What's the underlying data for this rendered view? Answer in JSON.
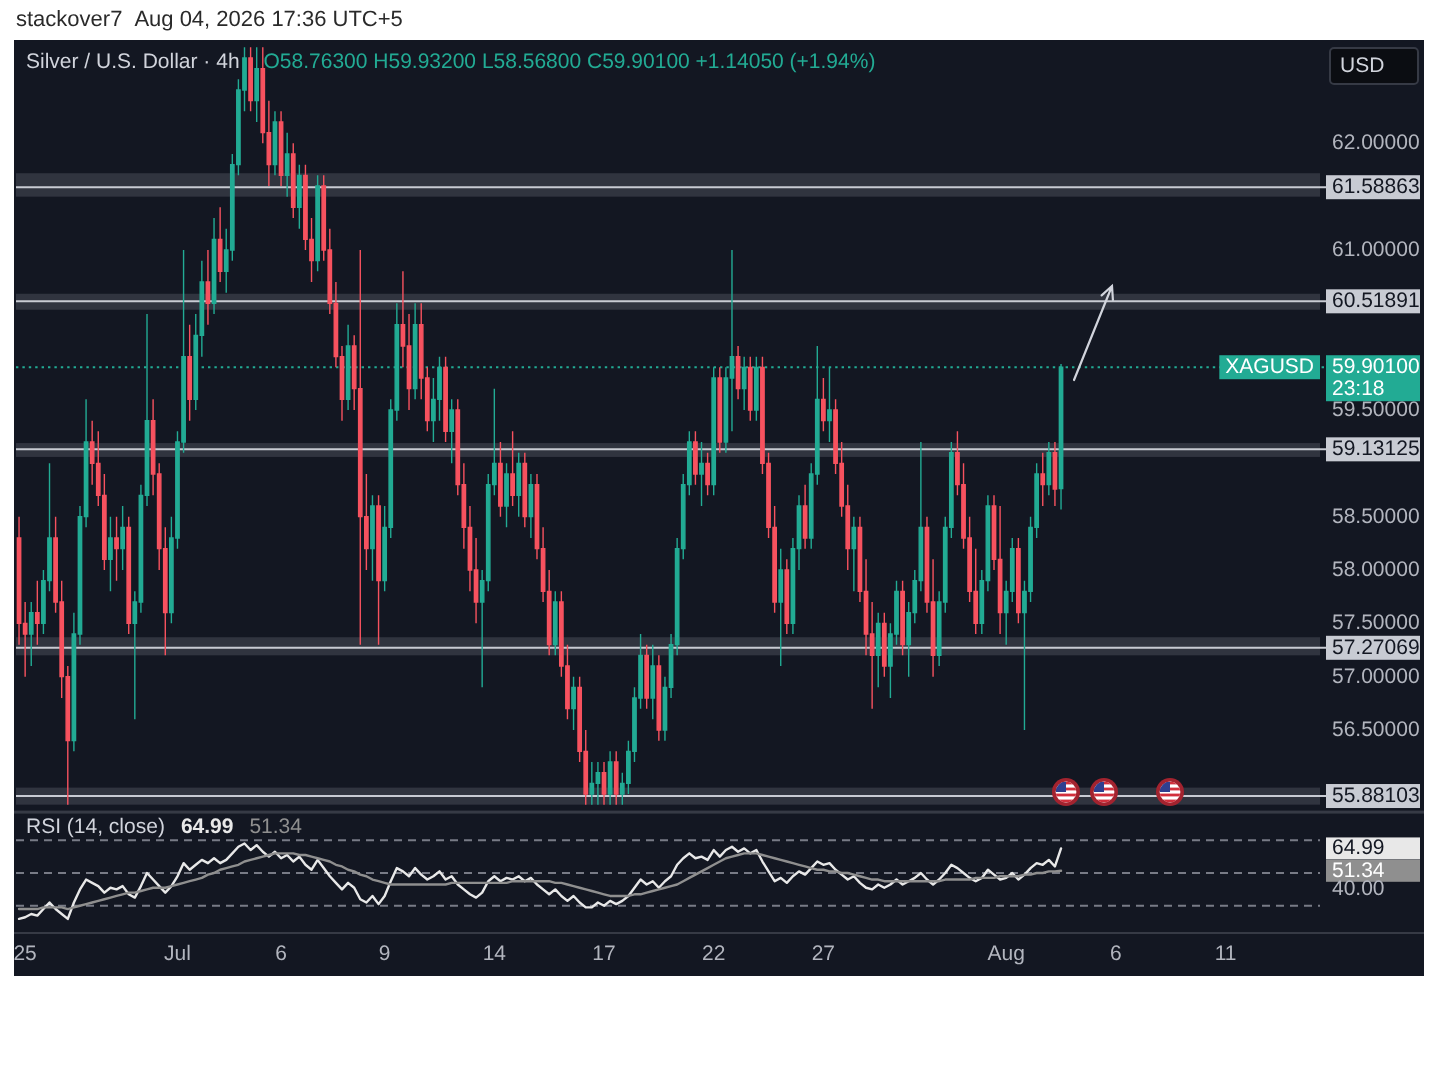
{
  "chart_data": [
    {
      "type": "candlestick",
      "title": "Silver / U.S. Dollar · 4h",
      "subtitle": "O58.76300 H59.93200 L58.56800 C59.90100 +1.14050 (+1.94%)",
      "ylabel": "USD",
      "annotations": [
        "stackover7",
        "Aug 04, 2026 17:36 UTC+5",
        {
          "text": "XAGUSD",
          "y": 59.901
        },
        "23:18"
      ],
      "categories": [
        null,
        null,
        null,
        null,
        null,
        null,
        null,
        null,
        null,
        null,
        null,
        null,
        null,
        null,
        null,
        null,
        null,
        null,
        null,
        null,
        null,
        null,
        null,
        null,
        null,
        null,
        null,
        null,
        null,
        null,
        null,
        null,
        null,
        null,
        null,
        null,
        null,
        null,
        null,
        null,
        null,
        null,
        null,
        null,
        null,
        null,
        null,
        null,
        null,
        null,
        null,
        null,
        null,
        null,
        null,
        null,
        null,
        null,
        null,
        null,
        null,
        null,
        null,
        null,
        null,
        null,
        null,
        null,
        null,
        null,
        null,
        null,
        null,
        null,
        null,
        null,
        null,
        null,
        null,
        null,
        null,
        null,
        null,
        null,
        null,
        null,
        null,
        null,
        null,
        null,
        null,
        null,
        null,
        null,
        null,
        null,
        null,
        null,
        null,
        null,
        null,
        null,
        null,
        null,
        null,
        null,
        null,
        null,
        null,
        null,
        null,
        null,
        null,
        null,
        null,
        null,
        null,
        null,
        null,
        null,
        null,
        null,
        null,
        null,
        null,
        null,
        null,
        null,
        null,
        null,
        null,
        null,
        null,
        null,
        null,
        null,
        null,
        null,
        null,
        null,
        null,
        null,
        null,
        null,
        null,
        null,
        null,
        null,
        null,
        null,
        null,
        null,
        null,
        null,
        null,
        null,
        null,
        null,
        null,
        null,
        null,
        null,
        null,
        null,
        null,
        null,
        null,
        null,
        null,
        null,
        null,
        null,
        null,
        null,
        null,
        null,
        null,
        null,
        null,
        null,
        null,
        null,
        null,
        null,
        null,
        null,
        null,
        null,
        null,
        null,
        null,
        null,
        null,
        null,
        null,
        null,
        null,
        null,
        null,
        null,
        null,
        null,
        null,
        null,
        null,
        null,
        null,
        null,
        null,
        null,
        null,
        null,
        null,
        null
      ],
      "ohlc": [
        [
          58.3,
          58.5,
          57.3,
          57.5
        ],
        [
          57.5,
          57.7,
          57.0,
          57.4
        ],
        [
          57.4,
          57.7,
          57.1,
          57.6
        ],
        [
          57.6,
          57.9,
          57.3,
          57.5
        ],
        [
          57.5,
          58.0,
          57.4,
          57.9
        ],
        [
          57.9,
          59.0,
          57.8,
          58.3
        ],
        [
          58.3,
          58.5,
          57.6,
          57.7
        ],
        [
          57.7,
          57.9,
          56.8,
          57.0
        ],
        [
          57.0,
          57.1,
          55.8,
          56.4
        ],
        [
          56.4,
          57.6,
          56.3,
          57.4
        ],
        [
          57.4,
          58.6,
          57.3,
          58.5
        ],
        [
          58.5,
          59.6,
          58.4,
          59.2
        ],
        [
          59.2,
          59.4,
          58.8,
          59.0
        ],
        [
          59.0,
          59.3,
          58.6,
          58.7
        ],
        [
          58.7,
          58.9,
          58.0,
          58.1
        ],
        [
          58.1,
          58.5,
          57.8,
          58.3
        ],
        [
          58.3,
          58.5,
          57.9,
          58.2
        ],
        [
          58.2,
          58.6,
          58.0,
          58.4
        ],
        [
          58.4,
          58.5,
          57.4,
          57.5
        ],
        [
          57.5,
          57.8,
          56.6,
          57.7
        ],
        [
          57.7,
          58.8,
          57.6,
          58.7
        ],
        [
          58.7,
          60.4,
          58.6,
          59.4
        ],
        [
          59.4,
          59.6,
          58.7,
          58.9
        ],
        [
          58.9,
          59.0,
          58.0,
          58.2
        ],
        [
          58.2,
          58.4,
          57.2,
          57.6
        ],
        [
          57.6,
          58.5,
          57.5,
          58.3
        ],
        [
          58.3,
          59.3,
          58.2,
          59.2
        ],
        [
          59.2,
          61.0,
          59.1,
          60.0
        ],
        [
          60.0,
          60.3,
          59.4,
          59.6
        ],
        [
          59.6,
          60.4,
          59.5,
          60.2
        ],
        [
          60.2,
          60.9,
          60.0,
          60.7
        ],
        [
          60.7,
          61.0,
          60.3,
          60.5
        ],
        [
          60.5,
          61.3,
          60.4,
          61.1
        ],
        [
          61.1,
          61.4,
          60.7,
          60.8
        ],
        [
          60.8,
          61.2,
          60.6,
          61.0
        ],
        [
          61.0,
          61.9,
          60.9,
          61.8
        ],
        [
          61.8,
          62.6,
          61.7,
          62.5
        ],
        [
          62.5,
          62.9,
          62.3,
          62.8
        ],
        [
          62.8,
          62.9,
          62.3,
          62.4
        ],
        [
          62.4,
          62.9,
          62.2,
          62.7
        ],
        [
          62.7,
          62.9,
          62.0,
          62.1
        ],
        [
          62.1,
          62.4,
          61.6,
          61.8
        ],
        [
          61.8,
          62.3,
          61.7,
          62.2
        ],
        [
          62.2,
          62.3,
          61.6,
          61.7
        ],
        [
          61.7,
          62.1,
          61.5,
          61.9
        ],
        [
          61.9,
          62.0,
          61.3,
          61.4
        ],
        [
          61.4,
          61.8,
          61.2,
          61.7
        ],
        [
          61.7,
          61.8,
          61.0,
          61.1
        ],
        [
          61.1,
          61.3,
          60.7,
          60.9
        ],
        [
          60.9,
          61.7,
          60.8,
          61.6
        ],
        [
          61.6,
          61.7,
          60.9,
          61.0
        ],
        [
          61.0,
          61.2,
          60.4,
          60.5
        ],
        [
          60.5,
          60.7,
          59.9,
          60.0
        ],
        [
          60.0,
          60.1,
          59.4,
          59.6
        ],
        [
          59.6,
          60.3,
          59.5,
          60.1
        ],
        [
          60.1,
          60.2,
          59.5,
          59.7
        ],
        [
          59.7,
          61.0,
          57.3,
          58.5
        ],
        [
          58.5,
          58.9,
          58.0,
          58.2
        ],
        [
          58.2,
          58.7,
          57.9,
          58.6
        ],
        [
          58.6,
          58.7,
          57.3,
          57.9
        ],
        [
          57.9,
          58.6,
          57.8,
          58.4
        ],
        [
          58.4,
          59.6,
          58.3,
          59.5
        ],
        [
          59.5,
          60.5,
          59.4,
          60.3
        ],
        [
          60.3,
          60.8,
          59.9,
          60.1
        ],
        [
          60.1,
          60.4,
          59.5,
          59.7
        ],
        [
          59.7,
          60.5,
          59.6,
          60.3
        ],
        [
          60.3,
          60.5,
          59.6,
          59.8
        ],
        [
          59.8,
          59.9,
          59.3,
          59.4
        ],
        [
          59.4,
          59.8,
          59.2,
          59.6
        ],
        [
          59.6,
          60.0,
          59.4,
          59.9
        ],
        [
          59.9,
          60.0,
          59.2,
          59.3
        ],
        [
          59.3,
          59.6,
          59.0,
          59.5
        ],
        [
          59.5,
          59.6,
          58.7,
          58.8
        ],
        [
          58.8,
          59.0,
          58.2,
          58.4
        ],
        [
          58.4,
          58.6,
          57.8,
          58.0
        ],
        [
          58.0,
          58.3,
          57.5,
          57.7
        ],
        [
          57.7,
          58.0,
          56.9,
          57.9
        ],
        [
          57.9,
          58.9,
          57.8,
          58.8
        ],
        [
          58.8,
          59.7,
          58.7,
          59.0
        ],
        [
          59.0,
          59.2,
          58.5,
          58.6
        ],
        [
          58.6,
          59.0,
          58.4,
          58.9
        ],
        [
          58.9,
          59.3,
          58.6,
          58.7
        ],
        [
          58.7,
          59.1,
          58.5,
          59.0
        ],
        [
          59.0,
          59.1,
          58.4,
          58.5
        ],
        [
          58.5,
          58.9,
          58.3,
          58.8
        ],
        [
          58.8,
          58.9,
          58.1,
          58.2
        ],
        [
          58.2,
          58.4,
          57.7,
          57.8
        ],
        [
          57.8,
          58.0,
          57.2,
          57.3
        ],
        [
          57.3,
          57.8,
          57.2,
          57.7
        ],
        [
          57.7,
          57.8,
          57.0,
          57.1
        ],
        [
          57.1,
          57.3,
          56.6,
          56.7
        ],
        [
          56.7,
          57.0,
          56.5,
          56.9
        ],
        [
          56.9,
          57.0,
          56.2,
          56.3
        ],
        [
          56.3,
          56.5,
          55.8,
          55.9
        ],
        [
          55.9,
          56.2,
          55.8,
          56.0
        ],
        [
          56.0,
          56.2,
          55.8,
          56.1
        ],
        [
          56.1,
          56.2,
          55.8,
          55.9
        ],
        [
          55.9,
          56.3,
          55.8,
          56.2
        ],
        [
          56.2,
          56.3,
          55.8,
          55.9
        ],
        [
          55.9,
          56.1,
          55.8,
          56.0
        ],
        [
          56.0,
          56.4,
          55.9,
          56.3
        ],
        [
          56.3,
          56.9,
          56.2,
          56.8
        ],
        [
          56.8,
          57.4,
          56.7,
          57.2
        ],
        [
          57.2,
          57.3,
          56.7,
          56.8
        ],
        [
          56.8,
          57.3,
          56.6,
          57.1
        ],
        [
          57.1,
          57.2,
          56.4,
          56.5
        ],
        [
          56.5,
          57.0,
          56.4,
          56.9
        ],
        [
          56.9,
          57.4,
          56.8,
          57.3
        ],
        [
          57.3,
          58.3,
          57.2,
          58.2
        ],
        [
          58.2,
          58.9,
          58.1,
          58.8
        ],
        [
          58.8,
          59.3,
          58.7,
          59.2
        ],
        [
          59.2,
          59.3,
          58.8,
          58.9
        ],
        [
          58.9,
          59.2,
          58.6,
          59.0
        ],
        [
          59.0,
          59.1,
          58.7,
          58.8
        ],
        [
          58.8,
          59.9,
          58.7,
          59.8
        ],
        [
          59.8,
          59.9,
          59.1,
          59.2
        ],
        [
          59.2,
          59.9,
          59.1,
          59.8
        ],
        [
          59.8,
          61.0,
          59.3,
          60.0
        ],
        [
          60.0,
          60.1,
          59.6,
          59.7
        ],
        [
          59.7,
          60.0,
          59.5,
          59.9
        ],
        [
          59.9,
          60.0,
          59.4,
          59.5
        ],
        [
          59.5,
          60.0,
          59.4,
          59.9
        ],
        [
          59.9,
          60.0,
          58.9,
          59.0
        ],
        [
          59.0,
          59.1,
          58.3,
          58.4
        ],
        [
          58.4,
          58.6,
          57.6,
          57.7
        ],
        [
          57.7,
          58.2,
          57.1,
          58.0
        ],
        [
          58.0,
          58.1,
          57.4,
          57.5
        ],
        [
          57.5,
          58.3,
          57.4,
          58.2
        ],
        [
          58.2,
          58.7,
          58.0,
          58.6
        ],
        [
          58.6,
          58.8,
          58.2,
          58.3
        ],
        [
          58.3,
          59.0,
          58.2,
          58.9
        ],
        [
          58.9,
          60.1,
          58.8,
          59.6
        ],
        [
          59.6,
          59.8,
          59.3,
          59.4
        ],
        [
          59.4,
          59.9,
          59.2,
          59.5
        ],
        [
          59.5,
          59.6,
          58.9,
          59.0
        ],
        [
          59.0,
          59.2,
          58.5,
          58.6
        ],
        [
          58.6,
          58.8,
          58.0,
          58.2
        ],
        [
          58.2,
          58.5,
          57.8,
          58.4
        ],
        [
          58.4,
          58.5,
          57.7,
          57.8
        ],
        [
          57.8,
          58.1,
          57.2,
          57.4
        ],
        [
          57.4,
          57.7,
          56.7,
          57.2
        ],
        [
          57.2,
          57.6,
          56.9,
          57.5
        ],
        [
          57.5,
          57.6,
          57.0,
          57.1
        ],
        [
          57.1,
          57.5,
          56.8,
          57.4
        ],
        [
          57.4,
          57.9,
          57.3,
          57.8
        ],
        [
          57.8,
          57.9,
          57.2,
          57.3
        ],
        [
          57.3,
          57.7,
          57.0,
          57.6
        ],
        [
          57.6,
          58.0,
          57.5,
          57.9
        ],
        [
          57.9,
          59.2,
          57.8,
          58.4
        ],
        [
          58.4,
          58.5,
          57.6,
          57.7
        ],
        [
          57.7,
          58.1,
          57.0,
          57.2
        ],
        [
          57.2,
          57.8,
          57.1,
          57.7
        ],
        [
          57.7,
          58.5,
          57.6,
          58.4
        ],
        [
          58.4,
          59.2,
          58.3,
          59.1
        ],
        [
          59.1,
          59.3,
          58.7,
          58.8
        ],
        [
          58.8,
          59.0,
          58.2,
          58.3
        ],
        [
          58.3,
          58.5,
          57.7,
          57.8
        ],
        [
          57.8,
          58.2,
          57.4,
          57.5
        ],
        [
          57.5,
          58.0,
          57.4,
          57.9
        ],
        [
          57.9,
          58.7,
          57.8,
          58.6
        ],
        [
          58.6,
          58.7,
          58.0,
          58.1
        ],
        [
          58.1,
          58.6,
          57.4,
          57.6
        ],
        [
          57.6,
          57.9,
          57.3,
          57.8
        ],
        [
          57.8,
          58.3,
          57.7,
          58.2
        ],
        [
          58.2,
          58.3,
          57.5,
          57.6
        ],
        [
          57.6,
          57.9,
          56.5,
          57.8
        ],
        [
          57.8,
          58.5,
          57.7,
          58.4
        ],
        [
          58.4,
          59.0,
          58.3,
          58.9
        ],
        [
          58.9,
          59.1,
          58.6,
          58.8
        ],
        [
          58.8,
          59.2,
          58.7,
          59.1
        ],
        [
          59.1,
          59.2,
          58.6,
          58.76
        ],
        [
          58.763,
          59.932,
          58.568,
          59.901
        ],
        null,
        null,
        null,
        null,
        null,
        null,
        null,
        null,
        null,
        null,
        null,
        null,
        null,
        null,
        null,
        null,
        null,
        null,
        null,
        null,
        null,
        null,
        null,
        null,
        null,
        null,
        null,
        null,
        null,
        null,
        null,
        null,
        null,
        null,
        null,
        null,
        null,
        null,
        null,
        null,
        null,
        null
      ],
      "ylim": [
        55.75,
        62.95
      ],
      "yticks": [
        {
          "value": 62,
          "label": "62.00000"
        },
        {
          "value": 61,
          "label": "61.00000"
        },
        {
          "value": 59.5,
          "label": "59.50000"
        },
        {
          "value": 58.5,
          "label": "58.50000"
        },
        {
          "value": 58,
          "label": "58.00000"
        },
        {
          "value": 57.5,
          "label": "57.50000"
        },
        {
          "value": 57,
          "label": "57.00000"
        },
        {
          "value": 56.5,
          "label": "56.50000"
        }
      ],
      "ref_lines": [
        {
          "axis": "y",
          "value": 61.58863,
          "label": "61.58863",
          "color": "#c8cbd3"
        },
        {
          "axis": "y",
          "value": 60.51891,
          "label": "60.51891",
          "color": "#c8cbd3"
        },
        {
          "axis": "y",
          "value": 59.901,
          "label": "59.90100",
          "color": "#22ab94",
          "line_style": "dotted"
        },
        {
          "axis": "y",
          "value": 59.13125,
          "label": "59.13125",
          "color": "#c8cbd3"
        },
        {
          "axis": "y",
          "value": 57.27069,
          "label": "57.27069",
          "color": "#c8cbd3"
        },
        {
          "axis": "y",
          "value": 55.88103,
          "label": "55.88103",
          "color": "#c8cbd3"
        }
      ],
      "bands": [
        {
          "axis": "y",
          "from": 61.5,
          "to": 61.72,
          "color": "#30343f"
        },
        {
          "axis": "y",
          "from": 60.44,
          "to": 60.59,
          "color": "#30343f"
        },
        {
          "axis": "y",
          "from": 59.06,
          "to": 59.19,
          "color": "#30343f"
        },
        {
          "axis": "y",
          "from": 57.2,
          "to": 57.37,
          "color": "#30343f"
        },
        {
          "axis": "y",
          "from": 55.8,
          "to": 55.96,
          "color": "#30343f"
        }
      ]
    },
    {
      "type": "line",
      "title": "RSI (14, close)",
      "annotations": [
        "64.99",
        "51.34"
      ],
      "categories": [
        null,
        "25",
        null,
        null,
        null,
        null,
        null,
        null,
        null,
        null,
        null,
        null,
        null,
        null,
        null,
        null,
        null,
        null,
        null,
        null,
        null,
        null,
        null,
        null,
        null,
        null,
        "Jul",
        null,
        null,
        null,
        null,
        null,
        null,
        null,
        null,
        null,
        null,
        null,
        null,
        null,
        null,
        null,
        null,
        "6",
        null,
        null,
        null,
        null,
        null,
        null,
        null,
        null,
        null,
        null,
        null,
        null,
        null,
        null,
        null,
        null,
        "9",
        null,
        null,
        null,
        null,
        null,
        null,
        null,
        null,
        null,
        null,
        null,
        null,
        null,
        null,
        null,
        null,
        null,
        "14",
        null,
        null,
        null,
        null,
        null,
        null,
        null,
        null,
        null,
        null,
        null,
        null,
        null,
        null,
        null,
        null,
        null,
        "17",
        null,
        null,
        null,
        null,
        null,
        null,
        null,
        null,
        null,
        null,
        null,
        null,
        null,
        null,
        null,
        null,
        null,
        "22",
        null,
        null,
        null,
        null,
        null,
        null,
        null,
        null,
        null,
        null,
        null,
        null,
        null,
        null,
        null,
        null,
        null,
        "27",
        null,
        null,
        null,
        null,
        null,
        null,
        null,
        null,
        null,
        null,
        null,
        null,
        null,
        null,
        null,
        null,
        null,
        null,
        null,
        null,
        null,
        null,
        null,
        null,
        null,
        null,
        null,
        null,
        null,
        "Aug",
        null,
        null,
        null,
        null,
        null,
        null,
        null,
        null,
        null,
        null,
        null,
        null,
        null,
        null,
        null,
        null,
        null,
        "6",
        null,
        null,
        null,
        null,
        null,
        null,
        null,
        null,
        null,
        null,
        null,
        null,
        null,
        null,
        null,
        null,
        null,
        "11",
        null,
        null,
        null,
        null,
        null,
        null,
        null,
        null,
        null,
        null,
        null,
        null,
        null,
        null,
        null
      ],
      "series": [
        {
          "color": "#e8e8e8",
          "values": [
            22,
            23,
            25,
            24,
            28,
            32,
            28,
            25,
            22,
            32,
            40,
            46,
            44,
            42,
            38,
            41,
            40,
            42,
            37,
            35,
            42,
            50,
            46,
            42,
            38,
            42,
            48,
            56,
            52,
            55,
            58,
            56,
            59,
            56,
            58,
            62,
            66,
            68,
            64,
            67,
            63,
            60,
            63,
            59,
            61,
            57,
            60,
            55,
            52,
            58,
            53,
            48,
            44,
            40,
            44,
            41,
            34,
            32,
            36,
            31,
            36,
            45,
            53,
            51,
            48,
            53,
            49,
            46,
            48,
            51,
            46,
            48,
            43,
            40,
            37,
            35,
            38,
            45,
            48,
            45,
            47,
            46,
            48,
            45,
            47,
            43,
            40,
            37,
            40,
            36,
            33,
            36,
            32,
            29,
            29,
            32,
            30,
            33,
            31,
            33,
            36,
            41,
            46,
            43,
            45,
            41,
            45,
            48,
            55,
            59,
            62,
            59,
            60,
            58,
            64,
            60,
            64,
            66,
            63,
            65,
            62,
            64,
            57,
            51,
            45,
            47,
            44,
            48,
            51,
            49,
            53,
            57,
            55,
            56,
            52,
            49,
            46,
            48,
            44,
            41,
            40,
            43,
            41,
            43,
            46,
            43,
            45,
            47,
            50,
            46,
            43,
            46,
            50,
            55,
            53,
            50,
            47,
            45,
            47,
            52,
            49,
            46,
            47,
            50,
            46,
            49,
            53,
            56,
            55,
            58,
            54,
            64.99,
            null,
            null,
            null,
            null,
            null,
            null,
            null,
            null,
            null,
            null,
            null,
            null,
            null,
            null,
            null,
            null,
            null,
            null,
            null,
            null,
            null,
            null,
            null,
            null,
            null,
            null,
            null,
            null,
            null,
            null,
            null,
            null,
            null,
            null,
            null,
            null,
            null,
            null,
            null,
            null,
            null,
            null
          ]
        },
        {
          "color": "#8f8f8f",
          "values": [
            28,
            28,
            28,
            28,
            29,
            29,
            29,
            29,
            28,
            29,
            30,
            31,
            32,
            33,
            34,
            35,
            36,
            37,
            38,
            38,
            39,
            40,
            41,
            41,
            41,
            42,
            43,
            44,
            45,
            46,
            47,
            49,
            50,
            52,
            53,
            54,
            55,
            57,
            58,
            59,
            60,
            61,
            62,
            62,
            62,
            62,
            61,
            61,
            60,
            59,
            58,
            57,
            55,
            54,
            52,
            51,
            49,
            48,
            46,
            45,
            44,
            43,
            43,
            43,
            43,
            43,
            43,
            43,
            43,
            43,
            43,
            44,
            44,
            44,
            44,
            44,
            44,
            44,
            44,
            44,
            44,
            45,
            45,
            45,
            45,
            45,
            45,
            45,
            44,
            44,
            43,
            42,
            41,
            40,
            39,
            38,
            37,
            36,
            36,
            36,
            36,
            37,
            37,
            38,
            39,
            40,
            41,
            42,
            43,
            45,
            47,
            49,
            51,
            53,
            55,
            57,
            59,
            60,
            61,
            62,
            62,
            62,
            61,
            60,
            59,
            58,
            57,
            56,
            55,
            54,
            53,
            52,
            52,
            51,
            51,
            50,
            50,
            49,
            48,
            47,
            46,
            46,
            45,
            45,
            45,
            45,
            45,
            45,
            45,
            45,
            45,
            45,
            46,
            46,
            46,
            46,
            46,
            47,
            47,
            47,
            47,
            48,
            48,
            48,
            48,
            49,
            49,
            50,
            50,
            51,
            51,
            51.34,
            null,
            null,
            null,
            null,
            null,
            null,
            null,
            null,
            null,
            null,
            null,
            null,
            null,
            null,
            null,
            null,
            null,
            null,
            null,
            null,
            null,
            null,
            null,
            null,
            null,
            null,
            null,
            null,
            null,
            null,
            null,
            null,
            null,
            null,
            null,
            null,
            null,
            null,
            null,
            null,
            null,
            null
          ]
        }
      ],
      "ylim": [
        14,
        86
      ],
      "yticks": [
        64.99,
        51.34,
        {
          "value": 40,
          "label": "40.00"
        }
      ],
      "ref_lines": [
        {
          "axis": "y",
          "value": 70,
          "color": "#787b86",
          "line_style": "dashed"
        },
        {
          "axis": "y",
          "value": 50,
          "color": "#787b86",
          "line_style": "dashed"
        },
        {
          "axis": "y",
          "value": 30,
          "color": "#787b86",
          "line_style": "dashed"
        }
      ]
    }
  ]
}
